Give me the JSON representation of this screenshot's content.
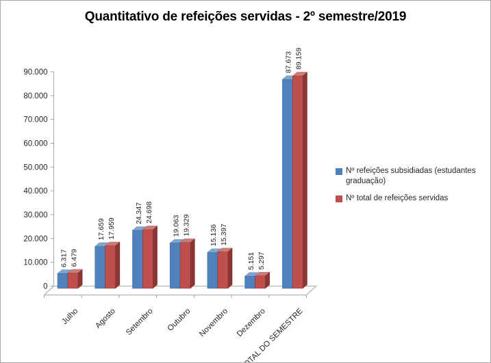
{
  "chart_data": {
    "type": "bar",
    "style": "3d-clustered-column",
    "title": "Quantitativo de refeições servidas - 2º semestre/2019",
    "categories": [
      "Julho",
      "Agosto",
      "Setembro",
      "Outubro",
      "Novembro",
      "Dezembro",
      "TOTAL DO SEMESTRE"
    ],
    "series": [
      {
        "name": "Nº refeições subsidiadas (estudantes graduação)",
        "color": "#4F81BD",
        "color_top": "#7FA5D2",
        "color_side": "#2E5688",
        "values": [
          6317,
          17659,
          24347,
          19063,
          15136,
          5151,
          87673
        ],
        "value_labels": [
          "6.317",
          "17.659",
          "24.347",
          "19.063",
          "15.136",
          "5.151",
          "87.673"
        ]
      },
      {
        "name": "Nº total  de refeições servidas",
        "color": "#BF4F4C",
        "color_top": "#CE7B77",
        "color_side": "#8C3532",
        "values": [
          6479,
          17959,
          24698,
          19329,
          15397,
          5297,
          89159
        ],
        "value_labels": [
          "6.479",
          "17.959",
          "24.698",
          "19.329",
          "15.397",
          "5.297",
          "89.159"
        ]
      }
    ],
    "xlabel": "",
    "ylabel": "",
    "ylim": [
      0,
      90000
    ],
    "ytick_step": 10000,
    "ytick_labels": [
      "0",
      "10.000",
      "20.000",
      "30.000",
      "40.000",
      "50.000",
      "60.000",
      "70.000",
      "80.000",
      "90.000"
    ],
    "grid": false,
    "legend_position": "right",
    "axis_color": "#A6A6A6",
    "text_color": "#262626",
    "data_label_color": "#1F1F1F",
    "background": "#FFFFFF",
    "border_color": "#A6A6A6"
  }
}
